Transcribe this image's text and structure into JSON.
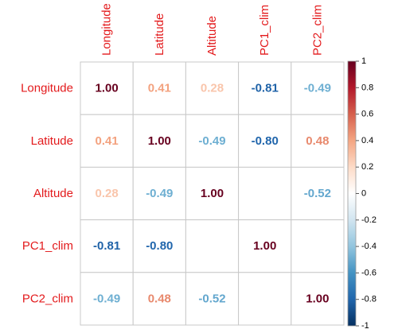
{
  "chart_data": {
    "type": "heatmap",
    "title": "",
    "xlabel": "",
    "ylabel": "",
    "variables": [
      "Longitude",
      "Latitude",
      "Altitude",
      "PC1_clim",
      "PC2_clim"
    ],
    "matrix": [
      [
        1.0,
        0.41,
        0.28,
        -0.81,
        -0.49
      ],
      [
        0.41,
        1.0,
        -0.49,
        -0.8,
        0.48
      ],
      [
        0.28,
        -0.49,
        1.0,
        null,
        -0.52
      ],
      [
        -0.81,
        -0.8,
        null,
        1.0,
        null
      ],
      [
        -0.49,
        0.48,
        -0.52,
        null,
        1.0
      ]
    ],
    "value_labels": [
      [
        "1.00",
        "0.41",
        "0.28",
        "-0.81",
        "-0.49"
      ],
      [
        "0.41",
        "1.00",
        "-0.49",
        "-0.80",
        "0.48"
      ],
      [
        "0.28",
        "-0.49",
        "1.00",
        "",
        "-0.52"
      ],
      [
        "-0.81",
        "-0.80",
        "",
        "1.00",
        ""
      ],
      [
        "-0.49",
        "0.48",
        "-0.52",
        "",
        "1.00"
      ]
    ],
    "colorbar": {
      "range": [
        -1,
        1
      ],
      "ticks": [
        "1",
        "0.8",
        "0.6",
        "0.4",
        "0.2",
        "0",
        "-0.2",
        "-0.4",
        "-0.6",
        "-0.8",
        "-1"
      ],
      "colors": [
        "#67001F",
        "#B2182B",
        "#D6604D",
        "#F4A582",
        "#FDDBC7",
        "#FFFFFF",
        "#D1E5F0",
        "#92C5DE",
        "#4393C3",
        "#2166AC",
        "#053061"
      ]
    },
    "label_color": "#E31A1C",
    "grid": true,
    "legend_placement": "right"
  }
}
